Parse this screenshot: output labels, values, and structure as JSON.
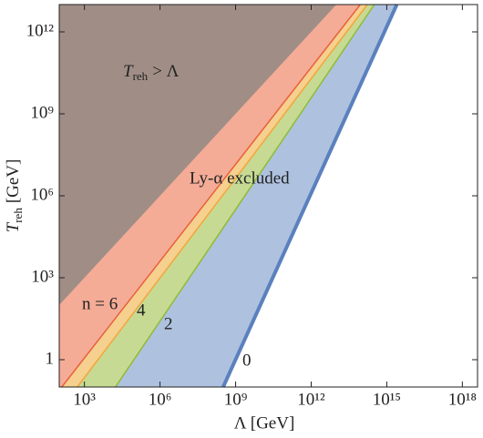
{
  "chart_data": {
    "type": "region-lines",
    "x_label": "Λ [GeV]",
    "y_label": {
      "symbol": "T",
      "subscript": "reh",
      "unit": "[GeV]"
    },
    "log_x": true,
    "log_y": true,
    "xlim": [
      100,
      4e+18
    ],
    "ylim": [
      0.1,
      10000000000000.0
    ],
    "xticks": [
      {
        "value": 1000.0,
        "label": "10³"
      },
      {
        "value": 1000000.0,
        "label": "10⁶"
      },
      {
        "value": 1000000000.0,
        "label": "10⁹"
      },
      {
        "value": 1000000000000.0,
        "label": "10¹²"
      },
      {
        "value": 1000000000000000.0,
        "label": "10¹⁵"
      },
      {
        "value": 1e+18,
        "label": "10¹⁸"
      }
    ],
    "yticks": [
      1,
      {
        "value": 1000.0,
        "label": "10³"
      },
      {
        "value": 1000000.0,
        "label": "10⁶"
      },
      {
        "value": 1000000000.0,
        "label": "10⁹"
      },
      {
        "value": 1000000000000.0,
        "label": "10¹²"
      }
    ],
    "region": {
      "label": {
        "symbol": "T",
        "subscript": "reh",
        "text": "> Λ"
      },
      "fill": "#a08e86",
      "x": [
        100,
        10000000000000.0
      ],
      "values": [
        100,
        10000000000000.0
      ]
    },
    "annotation": "Ly-α excluded",
    "series": [
      {
        "name": "0",
        "color": "#5b80be",
        "fill": "#aec2df",
        "width": 4,
        "x": [
          320000000.0,
          2500000000000000.0
        ],
        "values": [
          0.1,
          10000000000000.0
        ]
      },
      {
        "name": "2",
        "color": "#8fbb34",
        "fill": "#c7da93",
        "width": 1.5,
        "x": [
          17000.0,
          320000000000000.0
        ],
        "values": [
          0.1,
          10000000000000.0
        ]
      },
      {
        "name": "4",
        "color": "#f3a53a",
        "fill": "#f5d08f",
        "width": 1.5,
        "x": [
          520,
          170000000000000.0
        ],
        "values": [
          0.1,
          10000000000000.0
        ]
      },
      {
        "name": "n = 6",
        "color": "#ea5f3a",
        "fill": "#f4ac97",
        "width": 1.5,
        "x": [
          126,
          89000000000000.0
        ],
        "values": [
          0.1,
          10000000000000.0
        ]
      }
    ]
  }
}
